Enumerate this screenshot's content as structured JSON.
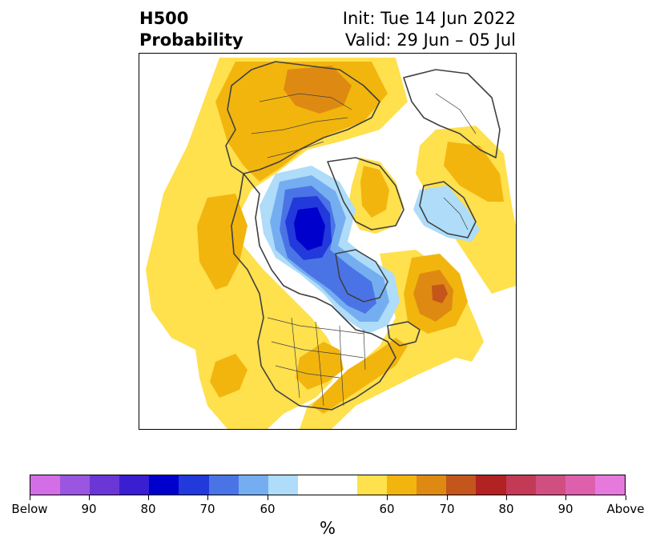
{
  "header": {
    "left_line1": "H500",
    "left_line2": "Probability",
    "right_line1": "Init: Tue 14 Jun 2022",
    "right_line2": "Valid: 29 Jun – 05 Jul"
  },
  "map": {
    "projection": "north-polar-stereographic",
    "features": [
      "coastlines",
      "country-borders",
      "us-state-borders"
    ]
  },
  "colorbar": {
    "units": "%",
    "colors": [
      "#d36ee6",
      "#9a56e0",
      "#6a37d6",
      "#3a1ed1",
      "#0000cc",
      "#2239db",
      "#4a74e6",
      "#75aef0",
      "#aedcf9",
      "#ffffff",
      "#ffe04d",
      "#f2b50e",
      "#de8a12",
      "#c4551b",
      "#b22222",
      "#c23a55",
      "#d04f80",
      "#de60ad",
      "#e679dc"
    ],
    "tick_labels": [
      "Below",
      "90",
      "80",
      "70",
      "60",
      "60",
      "70",
      "80",
      "90",
      "Above"
    ]
  }
}
